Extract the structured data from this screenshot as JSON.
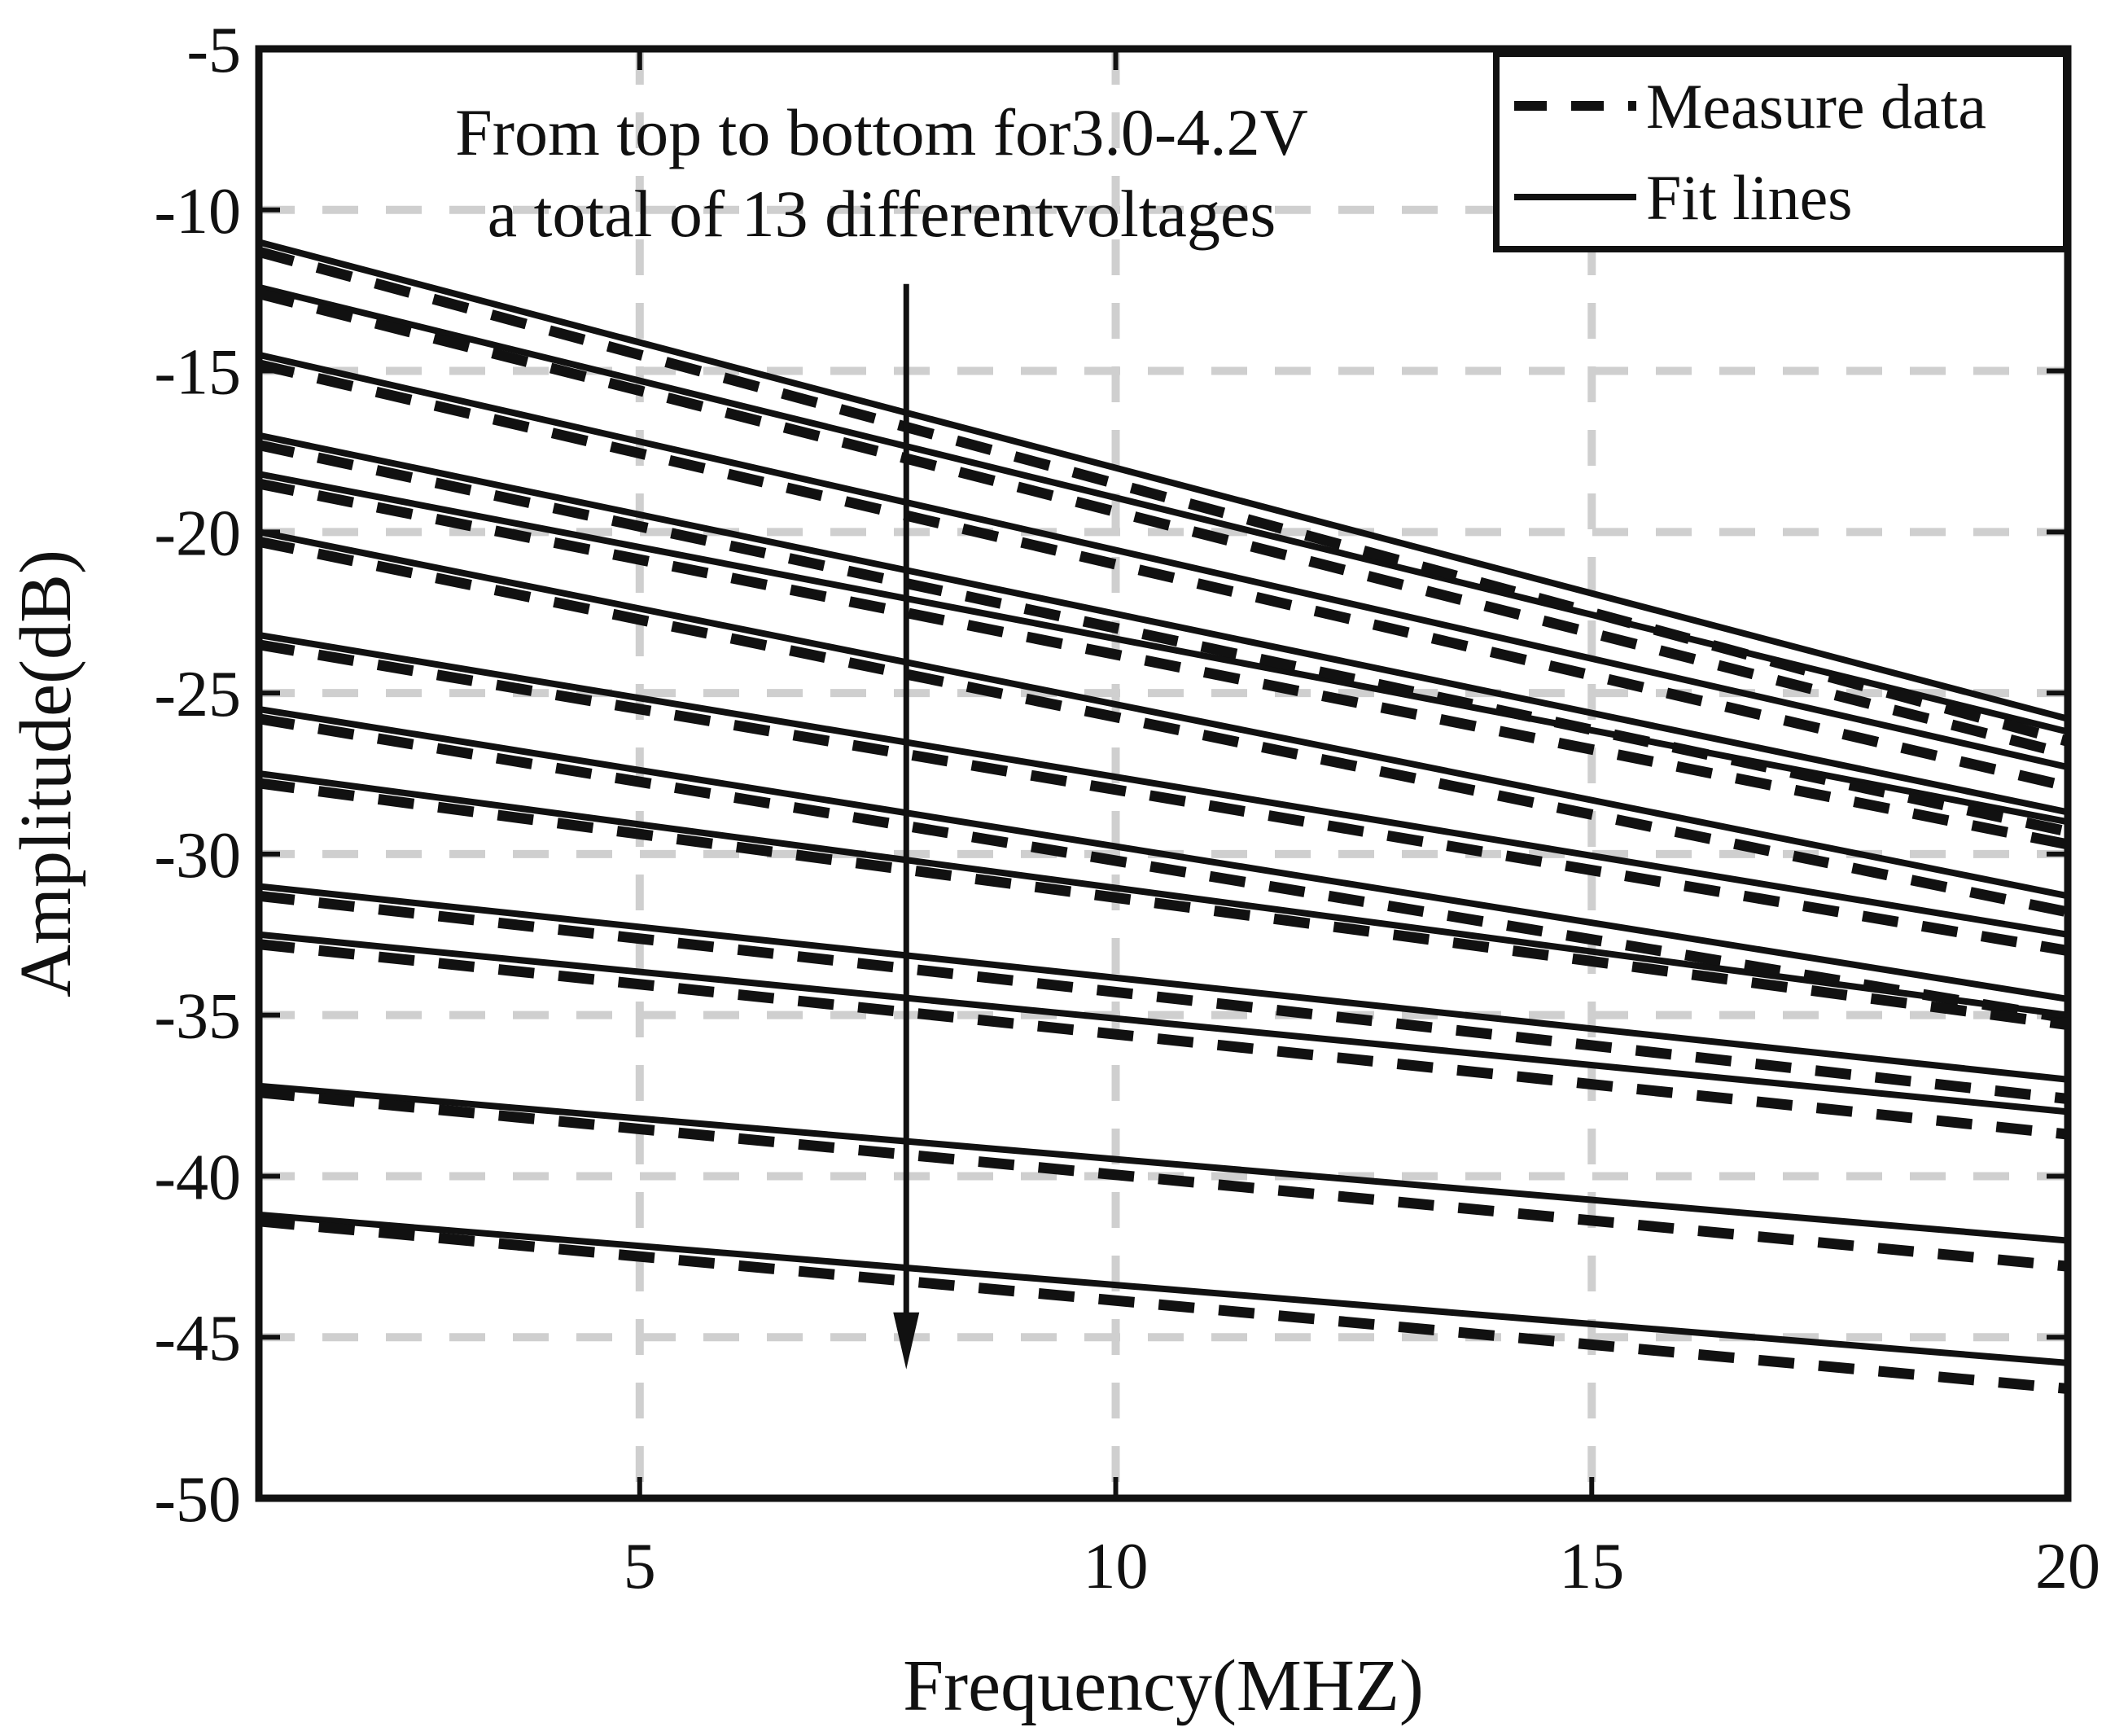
{
  "chart_data": {
    "type": "line",
    "title": "",
    "xlabel": "Frequency(MHZ)",
    "ylabel": "Amplitude(dB)",
    "xlim": [
      1,
      20
    ],
    "ylim": [
      -50,
      -5
    ],
    "xticks": [
      5,
      10,
      15,
      20
    ],
    "yticks": [
      -5,
      -10,
      -15,
      -20,
      -25,
      -30,
      -35,
      -40,
      -45,
      -50
    ],
    "grid": true,
    "annotation": {
      "line1": "From top to bottom for3.0-4.2V",
      "line2": "a total of 13 differentvoltages",
      "arrow_x": 7.8,
      "arrow_y_start": -12.3,
      "arrow_y_end": -46
    },
    "legend": {
      "position": "top-right",
      "entries": [
        {
          "label": "Measure data",
          "style": "dashed"
        },
        {
          "label": "Fit lines",
          "style": "solid"
        }
      ]
    },
    "series": [
      {
        "name": "Fit lines",
        "style": "solid",
        "lines": [
          {
            "x": [
              1,
              20
            ],
            "y": [
              -11.0,
              -25.8
            ]
          },
          {
            "x": [
              1,
              20
            ],
            "y": [
              -12.4,
              -26.2
            ]
          },
          {
            "x": [
              1,
              20
            ],
            "y": [
              -14.5,
              -27.3
            ]
          },
          {
            "x": [
              1,
              20
            ],
            "y": [
              -17.0,
              -28.7
            ]
          },
          {
            "x": [
              1,
              20
            ],
            "y": [
              -18.2,
              -29.0
            ]
          },
          {
            "x": [
              1,
              20
            ],
            "y": [
              -20.0,
              -31.3
            ]
          },
          {
            "x": [
              1,
              20
            ],
            "y": [
              -23.2,
              -32.5
            ]
          },
          {
            "x": [
              1,
              20
            ],
            "y": [
              -25.5,
              -34.5
            ]
          },
          {
            "x": [
              1,
              20
            ],
            "y": [
              -27.5,
              -35.0
            ]
          },
          {
            "x": [
              1,
              20
            ],
            "y": [
              -31.0,
              -37.0
            ]
          },
          {
            "x": [
              1,
              20
            ],
            "y": [
              -32.5,
              -38.0
            ]
          },
          {
            "x": [
              1,
              20
            ],
            "y": [
              -37.2,
              -42.0
            ]
          },
          {
            "x": [
              1,
              20
            ],
            "y": [
              -41.2,
              -45.8
            ]
          }
        ]
      },
      {
        "name": "Measure data",
        "style": "dashed",
        "lines": [
          {
            "x": [
              1,
              20
            ],
            "y": [
              -11.3,
              -26.5
            ]
          },
          {
            "x": [
              1,
              20
            ],
            "y": [
              -12.6,
              -26.9
            ]
          },
          {
            "x": [
              1,
              20
            ],
            "y": [
              -14.8,
              -27.9
            ]
          },
          {
            "x": [
              1,
              20
            ],
            "y": [
              -17.3,
              -29.3
            ]
          },
          {
            "x": [
              1,
              20
            ],
            "y": [
              -18.5,
              -29.7
            ]
          },
          {
            "x": [
              1,
              20
            ],
            "y": [
              -20.3,
              -31.8
            ]
          },
          {
            "x": [
              1,
              20
            ],
            "y": [
              -23.5,
              -33.0
            ]
          },
          {
            "x": [
              1,
              20
            ],
            "y": [
              -25.8,
              -35.1
            ]
          },
          {
            "x": [
              1,
              20
            ],
            "y": [
              -27.8,
              -35.3
            ]
          },
          {
            "x": [
              1,
              20
            ],
            "y": [
              -31.3,
              -37.6
            ]
          },
          {
            "x": [
              1,
              20
            ],
            "y": [
              -32.8,
              -38.7
            ]
          },
          {
            "x": [
              1,
              20
            ],
            "y": [
              -37.4,
              -42.8
            ]
          },
          {
            "x": [
              1,
              20
            ],
            "y": [
              -41.4,
              -46.6
            ]
          }
        ]
      }
    ]
  }
}
